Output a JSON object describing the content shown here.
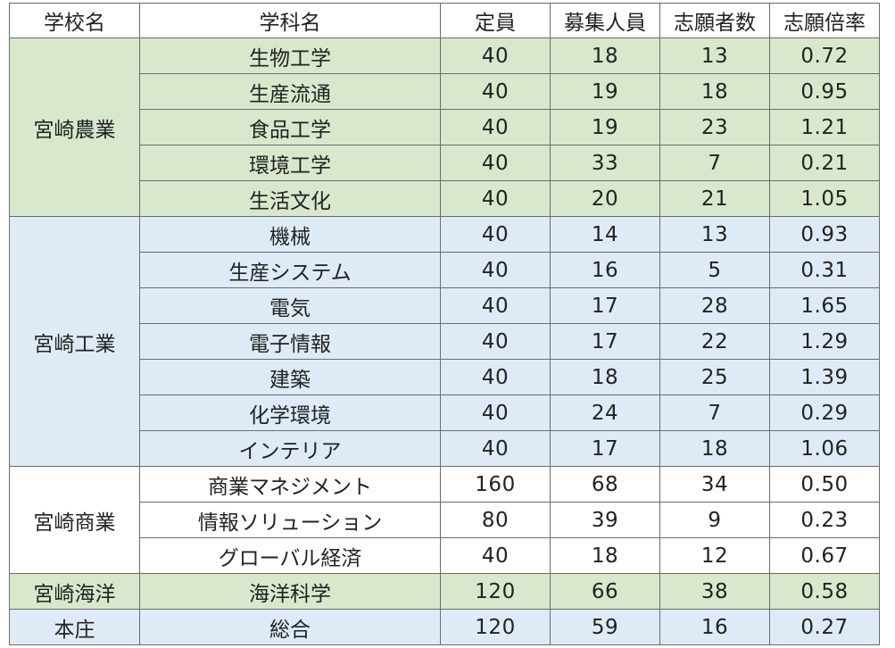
{
  "headers": [
    "学校名",
    "学科名",
    "定員",
    "募集人員",
    "志願者数",
    "志願倍率"
  ],
  "groups": [
    {
      "school": "宮崎農業",
      "color": "green",
      "rows": [
        [
          "生物工学",
          "40",
          "18",
          "13",
          "0.72"
        ],
        [
          "生産流通",
          "40",
          "19",
          "18",
          "0.95"
        ],
        [
          "食品工学",
          "40",
          "19",
          "23",
          "1.21"
        ],
        [
          "環境工学",
          "40",
          "33",
          "7",
          "0.21"
        ],
        [
          "生活文化",
          "40",
          "20",
          "21",
          "1.05"
        ]
      ]
    },
    {
      "school": "宮崎工業",
      "color": "blue",
      "rows": [
        [
          "機械",
          "40",
          "14",
          "13",
          "0.93"
        ],
        [
          "生産システム",
          "40",
          "16",
          "5",
          "0.31"
        ],
        [
          "電気",
          "40",
          "17",
          "28",
          "1.65"
        ],
        [
          "電子情報",
          "40",
          "17",
          "22",
          "1.29"
        ],
        [
          "建築",
          "40",
          "18",
          "25",
          "1.39"
        ],
        [
          "化学環境",
          "40",
          "24",
          "7",
          "0.29"
        ],
        [
          "インテリア",
          "40",
          "17",
          "18",
          "1.06"
        ]
      ]
    },
    {
      "school": "宮崎商業",
      "color": "white",
      "rows": [
        [
          "商業マネジメント",
          "160",
          "68",
          "34",
          "0.50"
        ],
        [
          "情報ソリューション",
          "80",
          "39",
          "9",
          "0.23"
        ],
        [
          "グローバル経済",
          "40",
          "18",
          "12",
          "0.67"
        ]
      ]
    },
    {
      "school": "宮崎海洋",
      "color": "green",
      "rows": [
        [
          "海洋科学",
          "120",
          "66",
          "38",
          "0.58"
        ]
      ]
    },
    {
      "school": "本庄",
      "color": "blue",
      "rows": [
        [
          "総合",
          "120",
          "59",
          "16",
          "0.27"
        ]
      ]
    }
  ]
}
